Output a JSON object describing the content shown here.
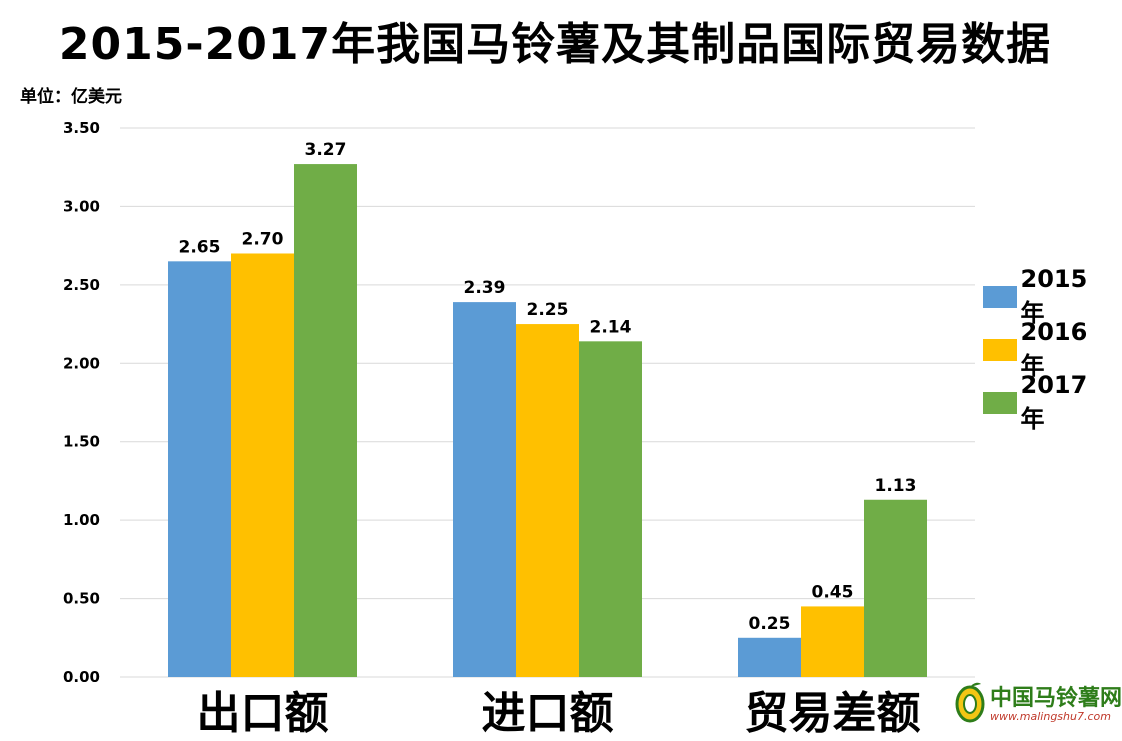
{
  "title": "2015-2017年我国马铃薯及其制品国际贸易数据",
  "unit_label": "单位：亿美元",
  "watermark": {
    "name": "中国马铃薯网",
    "url": "www.malingshu7.com"
  },
  "colors": {
    "2015年": "#5b9bd5",
    "2016年": "#ffc000",
    "2017年": "#70ad47",
    "grid": "#d9d9d9"
  },
  "chart_data": {
    "type": "bar",
    "categories": [
      "出口额",
      "进口额",
      "贸易差额"
    ],
    "series": [
      {
        "name": "2015年",
        "values": [
          2.65,
          2.39,
          0.25
        ]
      },
      {
        "name": "2016年",
        "values": [
          2.7,
          2.25,
          0.45
        ]
      },
      {
        "name": "2017年",
        "values": [
          3.27,
          2.14,
          1.13
        ]
      }
    ],
    "yticks": [
      "0.00",
      "0.50",
      "1.00",
      "1.50",
      "2.00",
      "2.50",
      "3.00",
      "3.50"
    ],
    "ylim": [
      0,
      3.5
    ],
    "grid": true,
    "legend_position": "right"
  }
}
